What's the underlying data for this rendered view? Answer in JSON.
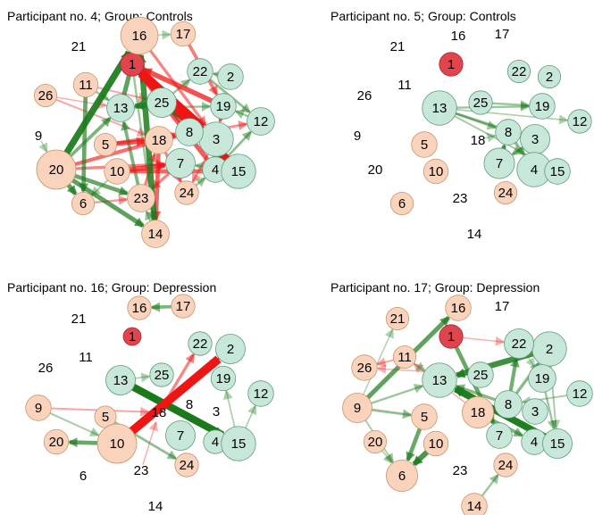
{
  "colors": {
    "pos_node_fill": "#c7e8d9",
    "pos_node_stroke": "#5f9a7c",
    "neg_node_fill": "#fad3bd",
    "neg_node_stroke": "#c9956e",
    "highlight_node_fill": "#e0454e",
    "highlight_node_stroke": "#a52a30",
    "edge_positive": "#1a7a1a",
    "edge_negative": "#f01515"
  },
  "nodes": [
    {
      "id": "1",
      "type": "highlight"
    },
    {
      "id": "2",
      "type": "pos"
    },
    {
      "id": "3",
      "type": "pos"
    },
    {
      "id": "4",
      "type": "pos"
    },
    {
      "id": "5",
      "type": "neg"
    },
    {
      "id": "6",
      "type": "neg"
    },
    {
      "id": "7",
      "type": "pos"
    },
    {
      "id": "8",
      "type": "pos"
    },
    {
      "id": "9",
      "type": "neg"
    },
    {
      "id": "10",
      "type": "neg"
    },
    {
      "id": "11",
      "type": "neg"
    },
    {
      "id": "12",
      "type": "pos"
    },
    {
      "id": "13",
      "type": "pos"
    },
    {
      "id": "14",
      "type": "neg"
    },
    {
      "id": "15",
      "type": "pos"
    },
    {
      "id": "16",
      "type": "neg"
    },
    {
      "id": "17",
      "type": "neg"
    },
    {
      "id": "18",
      "type": "neg"
    },
    {
      "id": "19",
      "type": "pos"
    },
    {
      "id": "20",
      "type": "neg"
    },
    {
      "id": "21",
      "type": "neg"
    },
    {
      "id": "22",
      "type": "pos"
    },
    {
      "id": "23",
      "type": "neg"
    },
    {
      "id": "24",
      "type": "neg"
    },
    {
      "id": "25",
      "type": "pos"
    },
    {
      "id": "26",
      "type": "neg"
    }
  ],
  "panels": [
    {
      "title": "Participant no. 4; Group: Controls",
      "strength": {
        "1": 0.2,
        "2": 0.3,
        "3": 0.75,
        "4": 0.3,
        "5": 0.15,
        "6": 0.15,
        "7": 0.5,
        "8": 0.4,
        "9": 0,
        "10": 0.3,
        "11": 0.25,
        "12": 0.4,
        "13": 0.4,
        "14": 0.4,
        "15": 0.75,
        "16": 0.9,
        "17": 0.25,
        "18": 0.4,
        "19": 0.3,
        "20": 1.0,
        "21": 0,
        "22": 0.3,
        "23": 0.4,
        "24": 0.2,
        "25": 0.5,
        "26": 0.15
      },
      "edges": [
        {
          "source": "1",
          "target": "3",
          "weight": -0.9
        },
        {
          "source": "15",
          "target": "1",
          "weight": -1.0
        },
        {
          "source": "19",
          "target": "1",
          "weight": -0.55
        },
        {
          "source": "4",
          "target": "1",
          "weight": -0.5
        },
        {
          "source": "8",
          "target": "1",
          "weight": -0.45
        },
        {
          "source": "17",
          "target": "19",
          "weight": -0.35
        },
        {
          "source": "16",
          "target": "3",
          "weight": -0.3
        },
        {
          "source": "16",
          "target": "17",
          "weight": 0.1
        },
        {
          "source": "25",
          "target": "3",
          "weight": 0.8
        },
        {
          "source": "25",
          "target": "13",
          "weight": 0.55
        },
        {
          "source": "13",
          "target": "16",
          "weight": 0.5
        },
        {
          "source": "20",
          "target": "16",
          "weight": 0.75
        },
        {
          "source": "20",
          "target": "6",
          "weight": 0.5
        },
        {
          "source": "20",
          "target": "14",
          "weight": 0.5
        },
        {
          "source": "20",
          "target": "23",
          "weight": 0.45
        },
        {
          "source": "20",
          "target": "8",
          "weight": -0.4
        },
        {
          "source": "20",
          "target": "7",
          "weight": -0.3
        },
        {
          "source": "20",
          "target": "13",
          "weight": 0.35
        },
        {
          "source": "10",
          "target": "7",
          "weight": -0.55
        },
        {
          "source": "10",
          "target": "15",
          "weight": -0.45
        },
        {
          "source": "5",
          "target": "18",
          "weight": -0.5
        },
        {
          "source": "5",
          "target": "8",
          "weight": -0.35
        },
        {
          "source": "18",
          "target": "14",
          "weight": -0.45
        },
        {
          "source": "18",
          "target": "24",
          "weight": -0.3
        },
        {
          "source": "18",
          "target": "12",
          "weight": -0.25
        },
        {
          "source": "14",
          "target": "16",
          "weight": 0.65
        },
        {
          "source": "23",
          "target": "13",
          "weight": 0.35
        },
        {
          "source": "23",
          "target": "18",
          "weight": -0.3
        },
        {
          "source": "7",
          "target": "23",
          "weight": -0.3
        },
        {
          "source": "11",
          "target": "6",
          "weight": 0.45
        },
        {
          "source": "11",
          "target": "13",
          "weight": 0.2
        },
        {
          "source": "11",
          "target": "25",
          "weight": -0.15
        },
        {
          "source": "26",
          "target": "18",
          "weight": -0.15
        },
        {
          "source": "26",
          "target": "13",
          "weight": -0.1
        },
        {
          "source": "22",
          "target": "12",
          "weight": 0.25
        },
        {
          "source": "2",
          "target": "22",
          "weight": 0.2
        },
        {
          "source": "19",
          "target": "3",
          "weight": -0.3
        },
        {
          "source": "12",
          "target": "19",
          "weight": 0.2
        },
        {
          "source": "8",
          "target": "15",
          "weight": 0.4
        },
        {
          "source": "4",
          "target": "12",
          "weight": 0.25
        },
        {
          "source": "15",
          "target": "7",
          "weight": 0.2
        },
        {
          "source": "24",
          "target": "4",
          "weight": 0.2
        },
        {
          "source": "3",
          "target": "24",
          "weight": -0.2
        },
        {
          "source": "14",
          "target": "23",
          "weight": 0.2
        },
        {
          "source": "9",
          "target": "20",
          "weight": 0.1
        },
        {
          "source": "6",
          "target": "23",
          "weight": -0.2
        },
        {
          "source": "13",
          "target": "19",
          "weight": 0.2
        },
        {
          "source": "25",
          "target": "22",
          "weight": 0.2
        },
        {
          "source": "10",
          "target": "6",
          "weight": 0.15
        },
        {
          "source": "1",
          "target": "14",
          "weight": 0.2
        }
      ]
    },
    {
      "title": "Participant no. 5; Group: Controls",
      "strength": {
        "1": 0.2,
        "2": 0.15,
        "3": 0.5,
        "4": 0.75,
        "5": 0.3,
        "6": 0.15,
        "7": 0.55,
        "8": 0.3,
        "9": 0,
        "10": 0.25,
        "11": 0,
        "12": 0.2,
        "13": 0.75,
        "14": 0,
        "15": 0.3,
        "16": 0,
        "17": 0,
        "18": 0,
        "19": 0.3,
        "20": 0,
        "21": 0,
        "22": 0.15,
        "23": 0,
        "24": 0.15,
        "25": 0.2,
        "26": 0
      },
      "edges": [
        {
          "source": "13",
          "target": "19",
          "weight": 0.2
        },
        {
          "source": "13",
          "target": "12",
          "weight": 0.12
        },
        {
          "source": "13",
          "target": "8",
          "weight": 0.2
        },
        {
          "source": "13",
          "target": "3",
          "weight": 0.25
        },
        {
          "source": "13",
          "target": "15",
          "weight": 0.15
        },
        {
          "source": "8",
          "target": "3",
          "weight": 0.4
        },
        {
          "source": "8",
          "target": "4",
          "weight": 0.3
        },
        {
          "source": "7",
          "target": "8",
          "weight": 0.4
        },
        {
          "source": "4",
          "target": "15",
          "weight": 0.2
        },
        {
          "source": "25",
          "target": "19",
          "weight": 0.2
        },
        {
          "source": "3",
          "target": "7",
          "weight": 0.25
        },
        {
          "source": "18",
          "target": "8",
          "weight": 0.1
        }
      ]
    },
    {
      "title": "Participant no. 16; Group: Depression",
      "strength": {
        "1": 0,
        "2": 0.5,
        "3": 0,
        "4": 0.2,
        "5": 0.1,
        "6": 0,
        "7": 0.5,
        "8": 0,
        "9": 0.3,
        "10": 1.0,
        "11": 0,
        "12": 0.3,
        "13": 0.5,
        "14": 0,
        "15": 0.75,
        "16": 0.2,
        "17": 0.2,
        "18": 0,
        "19": 0.25,
        "20": 0.25,
        "21": 0,
        "22": 0.2,
        "23": 0,
        "24": 0.2,
        "25": 0.2,
        "26": 0
      },
      "edges": [
        {
          "source": "10",
          "target": "2",
          "weight": -1.0
        },
        {
          "source": "13",
          "target": "15",
          "weight": 0.85
        },
        {
          "source": "18",
          "target": "22",
          "weight": -0.3
        },
        {
          "source": "10",
          "target": "20",
          "weight": 0.45
        },
        {
          "source": "17",
          "target": "16",
          "weight": 0.35
        },
        {
          "source": "15",
          "target": "4",
          "weight": 0.3
        },
        {
          "source": "5",
          "target": "24",
          "weight": 0.25
        },
        {
          "source": "9",
          "target": "10",
          "weight": 0.15
        },
        {
          "source": "9",
          "target": "18",
          "weight": -0.15
        },
        {
          "source": "13",
          "target": "25",
          "weight": 0.12
        },
        {
          "source": "15",
          "target": "19",
          "weight": 0.12
        },
        {
          "source": "15",
          "target": "12",
          "weight": 0.12
        },
        {
          "source": "23",
          "target": "18",
          "weight": -0.1
        }
      ]
    },
    {
      "title": "Participant no. 17; Group: Depression",
      "strength": {
        "1": 0.2,
        "2": 0.75,
        "3": 0.3,
        "4": 0.3,
        "5": 0.3,
        "6": 0.6,
        "7": 0.3,
        "8": 0.4,
        "9": 0.5,
        "10": 0.25,
        "11": 0.15,
        "12": 0.3,
        "13": 0.75,
        "14": 0.3,
        "15": 0.5,
        "16": 0.3,
        "17": 0,
        "18": 0.6,
        "19": 0.4,
        "20": 0.15,
        "21": 0.15,
        "22": 0.5,
        "23": 0,
        "24": 0.2,
        "25": 0.3,
        "26": 0.3
      },
      "edges": [
        {
          "source": "9",
          "target": "16",
          "weight": 0.5
        },
        {
          "source": "9",
          "target": "21",
          "weight": 0.1
        },
        {
          "source": "9",
          "target": "5",
          "weight": 0.25
        },
        {
          "source": "9",
          "target": "13",
          "weight": 0.2
        },
        {
          "source": "9",
          "target": "6",
          "weight": 0.15
        },
        {
          "source": "2",
          "target": "13",
          "weight": 0.65
        },
        {
          "source": "15",
          "target": "13",
          "weight": 0.8
        },
        {
          "source": "1",
          "target": "7",
          "weight": 0.45
        },
        {
          "source": "8",
          "target": "22",
          "weight": 0.4
        },
        {
          "source": "8",
          "target": "18",
          "weight": -0.35
        },
        {
          "source": "18",
          "target": "4",
          "weight": 0.35
        },
        {
          "source": "5",
          "target": "6",
          "weight": 0.45
        },
        {
          "source": "10",
          "target": "6",
          "weight": 0.6
        },
        {
          "source": "14",
          "target": "24",
          "weight": 0.2
        },
        {
          "source": "11",
          "target": "26",
          "weight": -0.15
        },
        {
          "source": "11",
          "target": "13",
          "weight": 0.12
        },
        {
          "source": "1",
          "target": "22",
          "weight": -0.1
        },
        {
          "source": "18",
          "target": "11",
          "weight": -0.1
        },
        {
          "source": "19",
          "target": "15",
          "weight": 0.2
        },
        {
          "source": "2",
          "target": "15",
          "weight": 0.15
        },
        {
          "source": "12",
          "target": "8",
          "weight": 0.15
        },
        {
          "source": "8",
          "target": "13",
          "weight": 0.3
        },
        {
          "source": "8",
          "target": "2",
          "weight": 0.3
        },
        {
          "source": "20",
          "target": "6",
          "weight": 0.12
        },
        {
          "source": "22",
          "target": "19",
          "weight": 0.1
        },
        {
          "source": "25",
          "target": "26",
          "weight": -0.1
        }
      ]
    }
  ]
}
